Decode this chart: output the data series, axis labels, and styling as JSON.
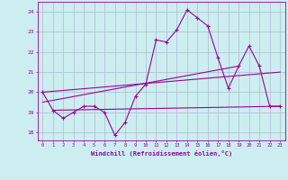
{
  "xlabel": "Windchill (Refroidissement éolien,°C)",
  "bg_color": "#cceef0",
  "grid_color": "#aacccc",
  "line_color": "#990099",
  "xlim": [
    -0.5,
    23.5
  ],
  "ylim": [
    17.6,
    24.5
  ],
  "yticks": [
    18,
    19,
    20,
    21,
    22,
    23,
    24
  ],
  "xticks": [
    0,
    1,
    2,
    3,
    4,
    5,
    6,
    7,
    8,
    9,
    10,
    11,
    12,
    13,
    14,
    15,
    16,
    17,
    18,
    19,
    20,
    21,
    22,
    23
  ],
  "series1_x": [
    0,
    1,
    2,
    3,
    4,
    5,
    6,
    7,
    8,
    9,
    10,
    11,
    12,
    13,
    14,
    15,
    16,
    17,
    18,
    19,
    20,
    21,
    22,
    23
  ],
  "series1_y": [
    20.0,
    19.1,
    18.7,
    19.0,
    19.3,
    19.3,
    19.0,
    17.85,
    18.5,
    19.8,
    20.4,
    22.6,
    22.5,
    23.1,
    24.1,
    23.7,
    23.3,
    21.7,
    20.2,
    21.3,
    22.3,
    21.3,
    19.3,
    19.3
  ],
  "line1_x": [
    1,
    23
  ],
  "line1_y": [
    19.1,
    19.3
  ],
  "line2_x": [
    0,
    19
  ],
  "line2_y": [
    19.5,
    21.3
  ],
  "line3_x": [
    0,
    23
  ],
  "line3_y": [
    20.0,
    21.0
  ]
}
